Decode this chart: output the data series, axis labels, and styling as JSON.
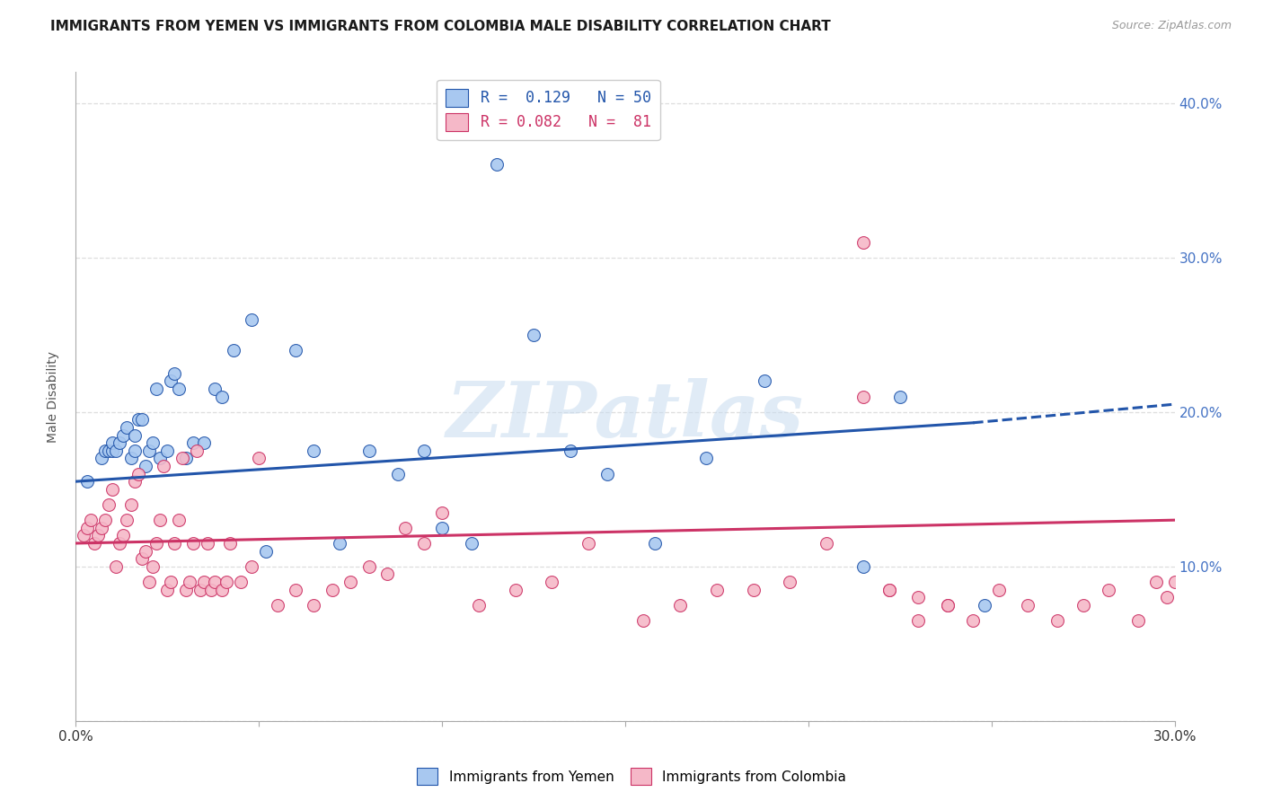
{
  "title": "IMMIGRANTS FROM YEMEN VS IMMIGRANTS FROM COLOMBIA MALE DISABILITY CORRELATION CHART",
  "source": "Source: ZipAtlas.com",
  "ylabel": "Male Disability",
  "xlim": [
    0.0,
    0.3
  ],
  "ylim": [
    0.0,
    0.42
  ],
  "xticks": [
    0.0,
    0.05,
    0.1,
    0.15,
    0.2,
    0.25,
    0.3
  ],
  "yticks": [
    0.0,
    0.1,
    0.2,
    0.3,
    0.4
  ],
  "right_ytick_labels": [
    "",
    "10.0%",
    "20.0%",
    "30.0%",
    "40.0%"
  ],
  "xtick_labels_show": [
    "0.0%",
    "30.0%"
  ],
  "color_yemen": "#A8C8F0",
  "color_colombia": "#F5B8C8",
  "line_color_yemen": "#2255AA",
  "line_color_colombia": "#CC3366",
  "legend_line1": "R =  0.129   N = 50",
  "legend_line2": "R = 0.082   N =  81",
  "watermark": "ZIPatlas",
  "yemen_x": [
    0.003,
    0.007,
    0.008,
    0.009,
    0.01,
    0.01,
    0.011,
    0.012,
    0.013,
    0.014,
    0.015,
    0.016,
    0.016,
    0.017,
    0.018,
    0.019,
    0.02,
    0.021,
    0.022,
    0.023,
    0.025,
    0.026,
    0.027,
    0.028,
    0.03,
    0.032,
    0.035,
    0.038,
    0.04,
    0.043,
    0.048,
    0.052,
    0.06,
    0.065,
    0.072,
    0.08,
    0.088,
    0.095,
    0.1,
    0.108,
    0.115,
    0.125,
    0.135,
    0.145,
    0.158,
    0.172,
    0.188,
    0.215,
    0.225,
    0.248
  ],
  "yemen_y": [
    0.155,
    0.17,
    0.175,
    0.175,
    0.175,
    0.18,
    0.175,
    0.18,
    0.185,
    0.19,
    0.17,
    0.175,
    0.185,
    0.195,
    0.195,
    0.165,
    0.175,
    0.18,
    0.215,
    0.17,
    0.175,
    0.22,
    0.225,
    0.215,
    0.17,
    0.18,
    0.18,
    0.215,
    0.21,
    0.24,
    0.26,
    0.11,
    0.24,
    0.175,
    0.115,
    0.175,
    0.16,
    0.175,
    0.125,
    0.115,
    0.36,
    0.25,
    0.175,
    0.16,
    0.115,
    0.17,
    0.22,
    0.1,
    0.21,
    0.075
  ],
  "colombia_x": [
    0.002,
    0.003,
    0.004,
    0.005,
    0.006,
    0.007,
    0.008,
    0.009,
    0.01,
    0.011,
    0.012,
    0.013,
    0.014,
    0.015,
    0.016,
    0.017,
    0.018,
    0.019,
    0.02,
    0.021,
    0.022,
    0.023,
    0.024,
    0.025,
    0.026,
    0.027,
    0.028,
    0.029,
    0.03,
    0.031,
    0.032,
    0.033,
    0.034,
    0.035,
    0.036,
    0.037,
    0.038,
    0.04,
    0.041,
    0.042,
    0.045,
    0.048,
    0.05,
    0.055,
    0.06,
    0.065,
    0.07,
    0.075,
    0.08,
    0.085,
    0.09,
    0.095,
    0.1,
    0.11,
    0.12,
    0.13,
    0.14,
    0.155,
    0.165,
    0.175,
    0.185,
    0.195,
    0.205,
    0.215,
    0.222,
    0.23,
    0.238,
    0.245,
    0.252,
    0.26,
    0.268,
    0.275,
    0.282,
    0.29,
    0.295,
    0.298,
    0.3,
    0.215,
    0.222,
    0.23,
    0.238
  ],
  "colombia_y": [
    0.12,
    0.125,
    0.13,
    0.115,
    0.12,
    0.125,
    0.13,
    0.14,
    0.15,
    0.1,
    0.115,
    0.12,
    0.13,
    0.14,
    0.155,
    0.16,
    0.105,
    0.11,
    0.09,
    0.1,
    0.115,
    0.13,
    0.165,
    0.085,
    0.09,
    0.115,
    0.13,
    0.17,
    0.085,
    0.09,
    0.115,
    0.175,
    0.085,
    0.09,
    0.115,
    0.085,
    0.09,
    0.085,
    0.09,
    0.115,
    0.09,
    0.1,
    0.17,
    0.075,
    0.085,
    0.075,
    0.085,
    0.09,
    0.1,
    0.095,
    0.125,
    0.115,
    0.135,
    0.075,
    0.085,
    0.09,
    0.115,
    0.065,
    0.075,
    0.085,
    0.085,
    0.09,
    0.115,
    0.21,
    0.085,
    0.065,
    0.075,
    0.065,
    0.085,
    0.075,
    0.065,
    0.075,
    0.085,
    0.065,
    0.09,
    0.08,
    0.09,
    0.31,
    0.085,
    0.08,
    0.075
  ],
  "yemen_trend": [
    0.0,
    0.245,
    0.155,
    0.193
  ],
  "yemen_dash": [
    0.245,
    0.3,
    0.193,
    0.205
  ],
  "colombia_trend": [
    0.0,
    0.3,
    0.115,
    0.13
  ],
  "grid_color": "#DEDEDE",
  "background_color": "#FFFFFF",
  "title_fontsize": 11,
  "axis_label_fontsize": 10,
  "tick_fontsize": 11,
  "legend_fontsize": 12
}
